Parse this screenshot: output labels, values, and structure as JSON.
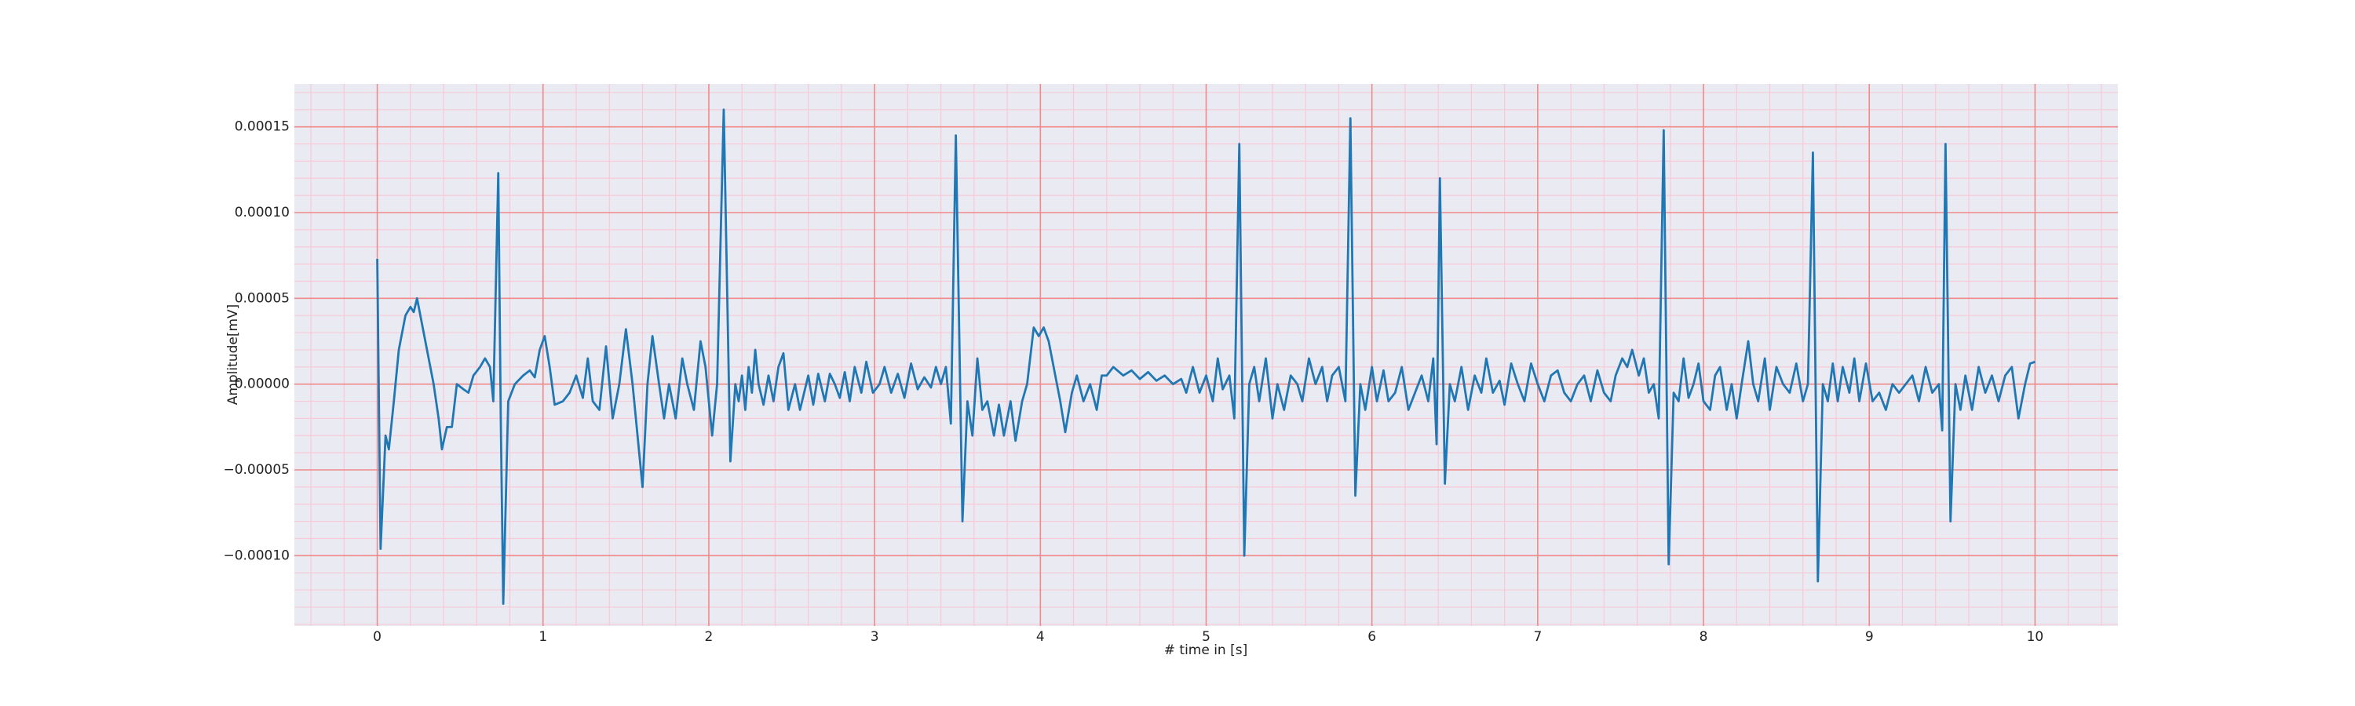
{
  "chart_data": {
    "type": "line",
    "xlabel": "# time in [s]",
    "ylabel": "Amplitude[mV]",
    "color": "#1f77b4",
    "background": "#eaeaf2",
    "grid": true,
    "grid_color": "#f08a8a",
    "minor_grid_color": "#f7c9d6",
    "minor_divisions": 5,
    "xlim": [
      -0.5,
      10.5
    ],
    "xticks": [
      0,
      1,
      2,
      3,
      4,
      5,
      6,
      7,
      8,
      9,
      10
    ],
    "ylim": [
      -0.000141,
      0.000175
    ],
    "yticks": [
      {
        "value": -0.0001,
        "label": "−0.00010"
      },
      {
        "value": -5e-05,
        "label": "−0.00005"
      },
      {
        "value": 0,
        "label": "0.00000"
      },
      5e-05,
      {
        "value": 0.0001,
        "label": "0.00010"
      },
      0.00015
    ],
    "x": [
      0,
      0.02,
      0.05,
      0.07,
      0.1,
      0.13,
      0.17,
      0.2,
      0.22,
      0.24,
      0.28,
      0.31,
      0.34,
      0.37,
      0.39,
      0.42,
      0.45,
      0.48,
      0.52,
      0.55,
      0.58,
      0.62,
      0.65,
      0.68,
      0.7,
      0.73,
      0.745,
      0.76,
      0.79,
      0.83,
      0.88,
      0.92,
      0.95,
      0.98,
      1.01,
      1.04,
      1.07,
      1.12,
      1.16,
      1.2,
      1.24,
      1.27,
      1.3,
      1.34,
      1.38,
      1.42,
      1.46,
      1.5,
      1.54,
      1.6,
      1.63,
      1.66,
      1.7,
      1.73,
      1.76,
      1.8,
      1.84,
      1.87,
      1.91,
      1.95,
      1.98,
      2.02,
      2.05,
      2.09,
      2.13,
      2.16,
      2.18,
      2.2,
      2.22,
      2.24,
      2.26,
      2.28,
      2.3,
      2.33,
      2.36,
      2.39,
      2.42,
      2.45,
      2.48,
      2.52,
      2.55,
      2.6,
      2.63,
      2.66,
      2.7,
      2.73,
      2.76,
      2.79,
      2.82,
      2.85,
      2.88,
      2.92,
      2.95,
      2.99,
      3.03,
      3.06,
      3.1,
      3.14,
      3.18,
      3.22,
      3.26,
      3.3,
      3.34,
      3.37,
      3.4,
      3.43,
      3.46,
      3.49,
      3.53,
      3.56,
      3.59,
      3.62,
      3.65,
      3.68,
      3.72,
      3.75,
      3.78,
      3.82,
      3.85,
      3.89,
      3.92,
      3.96,
      3.99,
      4.02,
      4.05,
      4.09,
      4.12,
      4.15,
      4.19,
      4.22,
      4.26,
      4.3,
      4.34,
      4.37,
      4.4,
      4.44,
      4.5,
      4.55,
      4.6,
      4.65,
      4.7,
      4.75,
      4.8,
      4.85,
      4.88,
      4.92,
      4.96,
      5,
      5.04,
      5.07,
      5.1,
      5.14,
      5.17,
      5.2,
      5.23,
      5.26,
      5.29,
      5.32,
      5.36,
      5.4,
      5.43,
      5.47,
      5.51,
      5.55,
      5.58,
      5.62,
      5.66,
      5.7,
      5.73,
      5.76,
      5.8,
      5.84,
      5.87,
      5.9,
      5.93,
      5.96,
      6,
      6.03,
      6.07,
      6.1,
      6.14,
      6.18,
      6.22,
      6.26,
      6.3,
      6.34,
      6.37,
      6.39,
      6.41,
      6.44,
      6.47,
      6.5,
      6.54,
      6.58,
      6.62,
      6.66,
      6.69,
      6.73,
      6.77,
      6.8,
      6.84,
      6.88,
      6.92,
      6.96,
      7,
      7.04,
      7.08,
      7.12,
      7.16,
      7.2,
      7.24,
      7.28,
      7.32,
      7.36,
      7.4,
      7.44,
      7.47,
      7.51,
      7.54,
      7.57,
      7.61,
      7.64,
      7.67,
      7.7,
      7.73,
      7.76,
      7.79,
      7.82,
      7.85,
      7.88,
      7.91,
      7.94,
      7.97,
      8,
      8.04,
      8.07,
      8.1,
      8.14,
      8.17,
      8.2,
      8.23,
      8.27,
      8.3,
      8.33,
      8.37,
      8.4,
      8.44,
      8.48,
      8.52,
      8.56,
      8.6,
      8.63,
      8.66,
      8.69,
      8.72,
      8.75,
      8.78,
      8.81,
      8.84,
      8.88,
      8.91,
      8.94,
      8.98,
      9.02,
      9.06,
      9.1,
      9.14,
      9.18,
      9.22,
      9.26,
      9.3,
      9.34,
      9.38,
      9.42,
      9.44,
      9.46,
      9.49,
      9.52,
      9.55,
      9.58,
      9.62,
      9.66,
      9.7,
      9.74,
      9.78,
      9.82,
      9.86,
      9.9,
      9.94,
      9.97,
      10
    ],
    "values": [
      7.3e-05,
      -9.6e-05,
      -3e-05,
      -3.8e-05,
      -1e-05,
      2e-05,
      4e-05,
      4.5e-05,
      4.2e-05,
      5e-05,
      3e-05,
      1.5e-05,
      0,
      -2e-05,
      -3.8e-05,
      -2.5e-05,
      -2.5e-05,
      0,
      -3e-06,
      -5e-06,
      5e-06,
      1e-05,
      1.5e-05,
      1e-05,
      -1e-05,
      0.000123,
      -2e-05,
      -0.000128,
      -1e-05,
      0,
      5e-06,
      8e-06,
      4e-06,
      2e-05,
      2.8e-05,
      1e-05,
      -1.2e-05,
      -1e-05,
      -5e-06,
      5e-06,
      -8e-06,
      1.5e-05,
      -1e-05,
      -1.5e-05,
      2.2e-05,
      -2e-05,
      0,
      3.2e-05,
      0,
      -6e-05,
      0,
      2.8e-05,
      0,
      -2e-05,
      0,
      -2e-05,
      1.5e-05,
      0,
      -1.5e-05,
      2.5e-05,
      1e-05,
      -3e-05,
      0,
      0.00016,
      -4.5e-05,
      0,
      -1e-05,
      5e-06,
      -1.5e-05,
      1e-05,
      -5e-06,
      2e-05,
      0,
      -1.2e-05,
      5e-06,
      -1e-05,
      1e-05,
      1.8e-05,
      -1.5e-05,
      0,
      -1.5e-05,
      5e-06,
      -1.2e-05,
      6e-06,
      -1e-05,
      6e-06,
      0,
      -8e-06,
      7e-06,
      -1e-05,
      1e-05,
      -5e-06,
      1.3e-05,
      -5e-06,
      0,
      1e-05,
      -5e-06,
      6e-06,
      -8e-06,
      1.2e-05,
      -3e-06,
      4e-06,
      -2e-06,
      1e-05,
      0,
      1e-05,
      -2.3e-05,
      0.000145,
      -8e-05,
      -1e-05,
      -3e-05,
      1.5e-05,
      -1.5e-05,
      -1e-05,
      -3e-05,
      -1.2e-05,
      -3e-05,
      -1e-05,
      -3.3e-05,
      -1e-05,
      0,
      3.3e-05,
      2.8e-05,
      3.3e-05,
      2.5e-05,
      5e-06,
      -1e-05,
      -2.8e-05,
      -5e-06,
      5e-06,
      -1e-05,
      0,
      -1.5e-05,
      5e-06,
      5e-06,
      1e-05,
      5e-06,
      8e-06,
      3e-06,
      7e-06,
      2e-06,
      5e-06,
      0,
      3e-06,
      -5e-06,
      1e-05,
      -5e-06,
      5e-06,
      -1e-05,
      1.5e-05,
      -3e-06,
      5e-06,
      -2e-05,
      0.00014,
      -0.0001,
      0,
      1e-05,
      -1e-05,
      1.5e-05,
      -2e-05,
      0,
      -1.5e-05,
      5e-06,
      0,
      -1e-05,
      1.5e-05,
      0,
      1e-05,
      -1e-05,
      5e-06,
      1e-05,
      -1e-05,
      0.000155,
      -6.5e-05,
      0,
      -1.5e-05,
      1e-05,
      -1e-05,
      8e-06,
      -1e-05,
      -5e-06,
      1e-05,
      -1.5e-05,
      -5e-06,
      5e-06,
      -1e-05,
      1.5e-05,
      -3.5e-05,
      0.00012,
      -5.8e-05,
      0,
      -1e-05,
      1e-05,
      -1.5e-05,
      5e-06,
      -5e-06,
      1.5e-05,
      -5e-06,
      2e-06,
      -1.2e-05,
      1.2e-05,
      0,
      -1e-05,
      1.2e-05,
      0,
      -1e-05,
      5e-06,
      8e-06,
      -5e-06,
      -1e-05,
      0,
      5e-06,
      -1e-05,
      8e-06,
      -5e-06,
      -1e-05,
      5e-06,
      1.5e-05,
      1e-05,
      2e-05,
      5e-06,
      1.5e-05,
      -5e-06,
      0,
      -2e-05,
      0.000148,
      -0.000105,
      -5e-06,
      -1e-05,
      1.5e-05,
      -8e-06,
      0,
      1.2e-05,
      -1e-05,
      -1.5e-05,
      5e-06,
      1e-05,
      -1.5e-05,
      0,
      -2e-05,
      0,
      2.5e-05,
      0,
      -1e-05,
      1.5e-05,
      -1.5e-05,
      1e-05,
      0,
      -5e-06,
      1.2e-05,
      -1e-05,
      0,
      0.000135,
      -0.000115,
      0,
      -1e-05,
      1.2e-05,
      -1e-05,
      1e-05,
      -5e-06,
      1.5e-05,
      -1e-05,
      1.2e-05,
      -1e-05,
      -5e-06,
      -1.5e-05,
      0,
      -5e-06,
      0,
      5e-06,
      -1e-05,
      1e-05,
      -5e-06,
      0,
      -2.7e-05,
      0.00014,
      -8e-05,
      0,
      -1.5e-05,
      5e-06,
      -1.5e-05,
      1e-05,
      -5e-06,
      5e-06,
      -1e-05,
      5e-06,
      1e-05,
      -2e-05,
      0,
      1.2e-05,
      1.3e-05
    ]
  }
}
